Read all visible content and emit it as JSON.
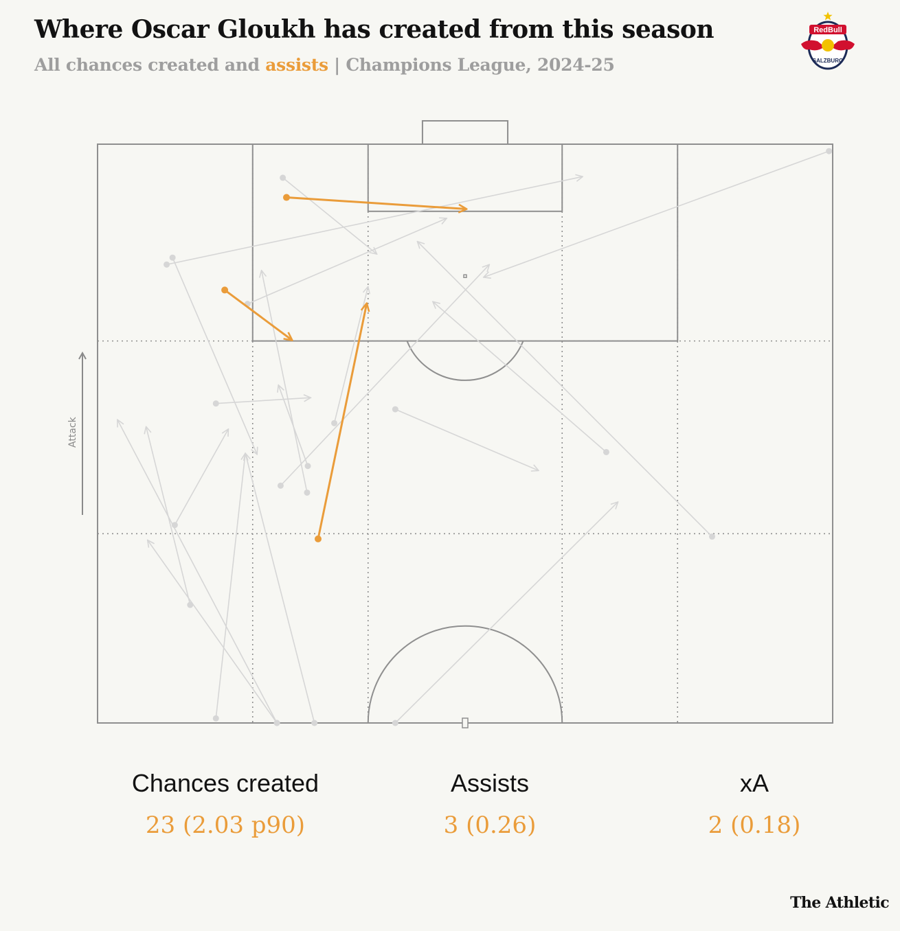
{
  "header": {
    "title": "Where Oscar Gloukh has created from this season",
    "subtitle_prefix": "All chances created and ",
    "subtitle_highlight": "assists",
    "subtitle_suffix": " | Champions League, 2024-25"
  },
  "logo": {
    "name": "Red Bull Salzburg crest",
    "text_top": "RedBull",
    "text_bottom": "SALZBURG"
  },
  "attack_label": "Attack",
  "colors": {
    "assist": "#ea9c3a",
    "chance": "#d6d6d6",
    "pitch_line": "#8f8f8f",
    "background": "#f7f7f3"
  },
  "chart_data": {
    "type": "pass-map",
    "units": "pitch coordinates: x = width 0-100 (left to right), y = length from halfway line 0-50 (attacking upward)",
    "series": [
      {
        "name": "assists",
        "passes": [
          {
            "x1": 25.7,
            "y1": 45.4,
            "x2": 50.1,
            "y2": 44.4
          },
          {
            "x1": 17.3,
            "y1": 37.4,
            "x2": 26.4,
            "y2": 33.1
          },
          {
            "x1": 30.0,
            "y1": 15.9,
            "x2": 36.6,
            "y2": 36.2
          }
        ]
      },
      {
        "name": "chances",
        "passes": [
          {
            "x1": 25.2,
            "y1": 47.1,
            "x2": 38.0,
            "y2": 40.5
          },
          {
            "x1": 9.4,
            "y1": 39.6,
            "x2": 66.0,
            "y2": 47.2
          },
          {
            "x1": 99.5,
            "y1": 49.4,
            "x2": 52.5,
            "y2": 38.5
          },
          {
            "x1": 20.4,
            "y1": 36.2,
            "x2": 47.5,
            "y2": 43.6
          },
          {
            "x1": 10.2,
            "y1": 40.2,
            "x2": 21.7,
            "y2": 23.2
          },
          {
            "x1": 28.5,
            "y1": 19.9,
            "x2": 22.3,
            "y2": 39.1
          },
          {
            "x1": 32.2,
            "y1": 25.9,
            "x2": 36.8,
            "y2": 37.7
          },
          {
            "x1": 16.1,
            "y1": 27.6,
            "x2": 29.0,
            "y2": 28.1
          },
          {
            "x1": 28.6,
            "y1": 22.2,
            "x2": 24.6,
            "y2": 29.2
          },
          {
            "x1": 24.9,
            "y1": 20.5,
            "x2": 53.3,
            "y2": 39.6
          },
          {
            "x1": 40.5,
            "y1": 27.1,
            "x2": 60.0,
            "y2": 21.8
          },
          {
            "x1": 69.2,
            "y1": 23.4,
            "x2": 45.6,
            "y2": 36.4
          },
          {
            "x1": 83.6,
            "y1": 16.1,
            "x2": 43.5,
            "y2": 41.6
          },
          {
            "x1": 10.5,
            "y1": 17.1,
            "x2": 17.8,
            "y2": 25.4
          },
          {
            "x1": 24.4,
            "y1": 0.0,
            "x2": 2.7,
            "y2": 26.2
          },
          {
            "x1": 24.4,
            "y1": 0.0,
            "x2": 6.8,
            "y2": 15.8
          },
          {
            "x1": 12.6,
            "y1": 10.2,
            "x2": 6.6,
            "y2": 25.6
          },
          {
            "x1": 16.1,
            "y1": 0.4,
            "x2": 20.1,
            "y2": 23.3
          },
          {
            "x1": 29.5,
            "y1": 0.0,
            "x2": 20.1,
            "y2": 23.3
          },
          {
            "x1": 40.5,
            "y1": 0.0,
            "x2": 70.8,
            "y2": 19.1
          }
        ]
      }
    ],
    "xlim": [
      0,
      100
    ],
    "ylim": [
      0,
      50
    ],
    "legend": "none"
  },
  "stats": [
    {
      "label": "Chances created",
      "value": "23 (2.03 p90)"
    },
    {
      "label": "Assists",
      "value": "3 (0.26)"
    },
    {
      "label": "xA",
      "value": "2 (0.18)"
    }
  ],
  "brand": "The Athletic"
}
